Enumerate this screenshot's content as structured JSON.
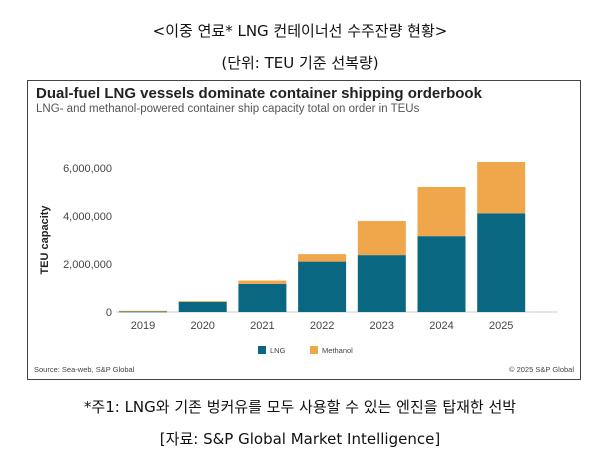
{
  "header": {
    "title": "<이중 연료* LNG 컨테이너선 수주잔량 현황>",
    "unit": "(단위: TEU 기준 선복량)"
  },
  "footer": {
    "note": "*주1: LNG와 기존 벙커유를 모두 사용할 수 있는 엔진을 탑재한 선박",
    "source": "[자료: S&P Global Market Intelligence]"
  },
  "chart_data": {
    "type": "bar",
    "stacked": true,
    "title": "Dual-fuel LNG vessels dominate container shipping orderbook",
    "subtitle": "LNG- and methanol-powered container ship capacity total on order in TEUs",
    "xlabel": "",
    "ylabel": "TEU capacity",
    "ylim": [
      0,
      6000000
    ],
    "yticks": [
      0,
      2000000,
      4000000,
      6000000
    ],
    "ytick_labels": [
      "0",
      "2,000,000",
      "4,000,000",
      "6,000,000"
    ],
    "categories": [
      "2019",
      "2020",
      "2021",
      "2022",
      "2023",
      "2024",
      "2025"
    ],
    "series": [
      {
        "name": "LNG",
        "color": "#0a6781",
        "values": [
          20000,
          430000,
          1170000,
          2100000,
          2370000,
          3160000,
          4110000
        ]
      },
      {
        "name": "Methanol",
        "color": "#f0a64a",
        "values": [
          30000,
          20000,
          140000,
          310000,
          1420000,
          2050000,
          2140000
        ]
      }
    ],
    "legend_position": "bottom",
    "grid": false,
    "source": "Source: Sea-web, S&P Global",
    "copyright": "© 2025 S&P Global"
  }
}
